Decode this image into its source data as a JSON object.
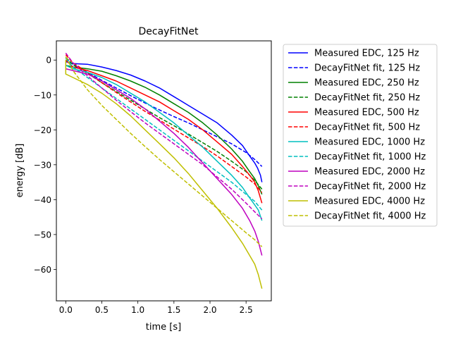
{
  "chart_data": {
    "type": "line",
    "title": "DecayFitNet",
    "xlabel": "time [s]",
    "ylabel": "energy [dB]",
    "xlim": [
      -0.13,
      2.85
    ],
    "ylim": [
      -69,
      5.5
    ],
    "xticks": [
      0.0,
      0.5,
      1.0,
      1.5,
      2.0,
      2.5
    ],
    "xtick_labels": [
      "0.0",
      "0.5",
      "1.0",
      "1.5",
      "2.0",
      "2.5"
    ],
    "yticks": [
      0,
      -10,
      -20,
      -30,
      -40,
      -50,
      -60
    ],
    "ytick_labels": [
      "0",
      "−10",
      "−20",
      "−30",
      "−40",
      "−50",
      "−60"
    ],
    "grid": false,
    "legend_position": "outside-right",
    "series": [
      {
        "name": "Measured EDC, 125 Hz",
        "color": "#0000ff",
        "style": "solid",
        "x": [
          0.0,
          0.1,
          0.3,
          0.5,
          0.7,
          0.9,
          1.1,
          1.3,
          1.5,
          1.7,
          1.9,
          2.1,
          2.3,
          2.45,
          2.55,
          2.62,
          2.66,
          2.7,
          2.72
        ],
        "y": [
          -0.5,
          -1.0,
          -1.2,
          -2.0,
          -3.0,
          -4.3,
          -6.0,
          -8.0,
          -10.5,
          -13.0,
          -15.5,
          -18.0,
          -21.5,
          -24.5,
          -27.5,
          -29.5,
          -31.0,
          -33.0,
          -35.0
        ]
      },
      {
        "name": "DecayFitNet fit, 125 Hz",
        "color": "#0000ff",
        "style": "dashed",
        "x": [
          0.0,
          0.1,
          0.3,
          0.5,
          0.7,
          0.9,
          1.1,
          1.3,
          1.5,
          1.7,
          1.9,
          2.1,
          2.3,
          2.5,
          2.62,
          2.72
        ],
        "y": [
          0.5,
          -1.2,
          -3.5,
          -5.8,
          -8.0,
          -10.2,
          -12.3,
          -14.3,
          -16.2,
          -18.0,
          -20.0,
          -22.0,
          -24.0,
          -26.5,
          -28.5,
          -30.5
        ]
      },
      {
        "name": "Measured EDC, 250 Hz",
        "color": "#008000",
        "style": "solid",
        "x": [
          0.0,
          0.1,
          0.3,
          0.5,
          0.7,
          0.9,
          1.1,
          1.3,
          1.5,
          1.7,
          1.9,
          2.1,
          2.3,
          2.45,
          2.55,
          2.62,
          2.67,
          2.72
        ],
        "y": [
          -1.5,
          -2.0,
          -2.5,
          -3.2,
          -4.5,
          -6.0,
          -7.8,
          -10.0,
          -12.5,
          -15.0,
          -18.0,
          -21.5,
          -25.5,
          -29.0,
          -32.0,
          -34.0,
          -36.0,
          -38.5
        ]
      },
      {
        "name": "DecayFitNet fit, 250 Hz",
        "color": "#008000",
        "style": "dashed",
        "x": [
          0.0,
          0.1,
          0.3,
          0.5,
          0.7,
          0.9,
          1.1,
          1.3,
          1.5,
          1.7,
          1.9,
          2.1,
          2.3,
          2.5,
          2.62,
          2.72
        ],
        "y": [
          0.8,
          -1.3,
          -3.8,
          -6.5,
          -9.0,
          -11.5,
          -14.0,
          -16.5,
          -18.8,
          -21.2,
          -23.7,
          -26.2,
          -29.0,
          -32.0,
          -34.5,
          -37.0
        ]
      },
      {
        "name": "Measured EDC, 500 Hz",
        "color": "#ff0000",
        "style": "solid",
        "x": [
          0.0,
          0.1,
          0.3,
          0.5,
          0.7,
          0.9,
          1.1,
          1.3,
          1.5,
          1.7,
          1.9,
          2.1,
          2.3,
          2.45,
          2.55,
          2.62,
          2.67,
          2.72
        ],
        "y": [
          0.0,
          -2.0,
          -3.0,
          -4.5,
          -6.0,
          -8.0,
          -10.0,
          -12.0,
          -14.5,
          -17.0,
          -20.0,
          -23.5,
          -27.0,
          -30.5,
          -33.0,
          -35.0,
          -37.5,
          -41.0
        ]
      },
      {
        "name": "DecayFitNet fit, 500 Hz",
        "color": "#ff0000",
        "style": "dashed",
        "x": [
          0.0,
          0.1,
          0.3,
          0.5,
          0.7,
          0.9,
          1.1,
          1.3,
          1.5,
          1.7,
          1.9,
          2.1,
          2.3,
          2.5,
          2.62,
          2.72
        ],
        "y": [
          1.5,
          -0.8,
          -3.5,
          -6.5,
          -9.3,
          -12.0,
          -14.7,
          -17.2,
          -19.8,
          -22.3,
          -24.8,
          -27.5,
          -30.5,
          -33.5,
          -35.5,
          -38.0
        ]
      },
      {
        "name": "Measured EDC, 1000 Hz",
        "color": "#00bfbf",
        "style": "solid",
        "x": [
          0.0,
          0.1,
          0.3,
          0.5,
          0.7,
          0.9,
          1.1,
          1.3,
          1.5,
          1.7,
          1.9,
          2.1,
          2.3,
          2.45,
          2.55,
          2.62,
          2.67,
          2.72
        ],
        "y": [
          -1.5,
          -2.5,
          -3.5,
          -5.0,
          -7.0,
          -9.5,
          -12.0,
          -15.0,
          -18.0,
          -21.5,
          -25.0,
          -29.0,
          -33.0,
          -36.5,
          -39.5,
          -41.5,
          -43.0,
          -46.0
        ]
      },
      {
        "name": "DecayFitNet fit, 1000 Hz",
        "color": "#00bfbf",
        "style": "dashed",
        "x": [
          0.0,
          0.1,
          0.3,
          0.5,
          0.7,
          0.9,
          1.1,
          1.3,
          1.5,
          1.7,
          1.9,
          2.1,
          2.3,
          2.5,
          2.62,
          2.72
        ],
        "y": [
          0.5,
          -2.0,
          -5.0,
          -8.0,
          -11.0,
          -14.0,
          -17.0,
          -20.0,
          -23.0,
          -26.0,
          -29.0,
          -32.0,
          -35.0,
          -38.5,
          -40.5,
          -43.0
        ]
      },
      {
        "name": "Measured EDC, 2000 Hz",
        "color": "#bf00bf",
        "style": "solid",
        "x": [
          0.0,
          0.1,
          0.3,
          0.5,
          0.7,
          0.9,
          1.1,
          1.3,
          1.5,
          1.7,
          1.9,
          2.1,
          2.3,
          2.45,
          2.55,
          2.62,
          2.67,
          2.72
        ],
        "y": [
          -2.5,
          -3.0,
          -4.0,
          -6.0,
          -8.5,
          -11.0,
          -14.0,
          -17.5,
          -21.0,
          -25.0,
          -29.5,
          -34.0,
          -38.5,
          -42.5,
          -46.0,
          -49.0,
          -52.0,
          -56.0
        ]
      },
      {
        "name": "DecayFitNet fit, 2000 Hz",
        "color": "#bf00bf",
        "style": "dashed",
        "x": [
          0.0,
          0.1,
          0.3,
          0.5,
          0.7,
          0.9,
          1.1,
          1.3,
          1.5,
          1.7,
          1.9,
          2.1,
          2.3,
          2.5,
          2.62,
          2.72
        ],
        "y": [
          2.0,
          -0.8,
          -4.5,
          -8.0,
          -11.5,
          -14.8,
          -18.0,
          -21.0,
          -24.0,
          -27.0,
          -30.0,
          -33.5,
          -37.0,
          -41.0,
          -43.5,
          -45.5
        ]
      },
      {
        "name": "Measured EDC, 4000 Hz",
        "color": "#bfbf00",
        "style": "solid",
        "x": [
          0.0,
          0.0,
          0.1,
          0.3,
          0.5,
          0.7,
          0.9,
          1.1,
          1.3,
          1.5,
          1.7,
          1.9,
          2.1,
          2.3,
          2.45,
          2.55,
          2.62,
          2.67,
          2.72
        ],
        "y": [
          0.0,
          -4.0,
          -5.0,
          -7.0,
          -9.5,
          -12.5,
          -16.0,
          -20.0,
          -24.0,
          -28.0,
          -32.5,
          -37.5,
          -42.5,
          -48.0,
          -52.5,
          -56.0,
          -58.5,
          -61.5,
          -65.5
        ]
      },
      {
        "name": "DecayFitNet fit, 4000 Hz",
        "color": "#bfbf00",
        "style": "dashed",
        "x": [
          0.0,
          0.1,
          0.3,
          0.5,
          0.7,
          0.9,
          1.1,
          1.3,
          1.5,
          1.7,
          1.9,
          2.1,
          2.3,
          2.5,
          2.62,
          2.72
        ],
        "y": [
          1.0,
          -3.0,
          -8.5,
          -13.0,
          -17.0,
          -21.0,
          -24.8,
          -28.5,
          -32.0,
          -35.5,
          -39.0,
          -42.5,
          -46.0,
          -49.5,
          -51.5,
          -53.5
        ]
      }
    ]
  }
}
